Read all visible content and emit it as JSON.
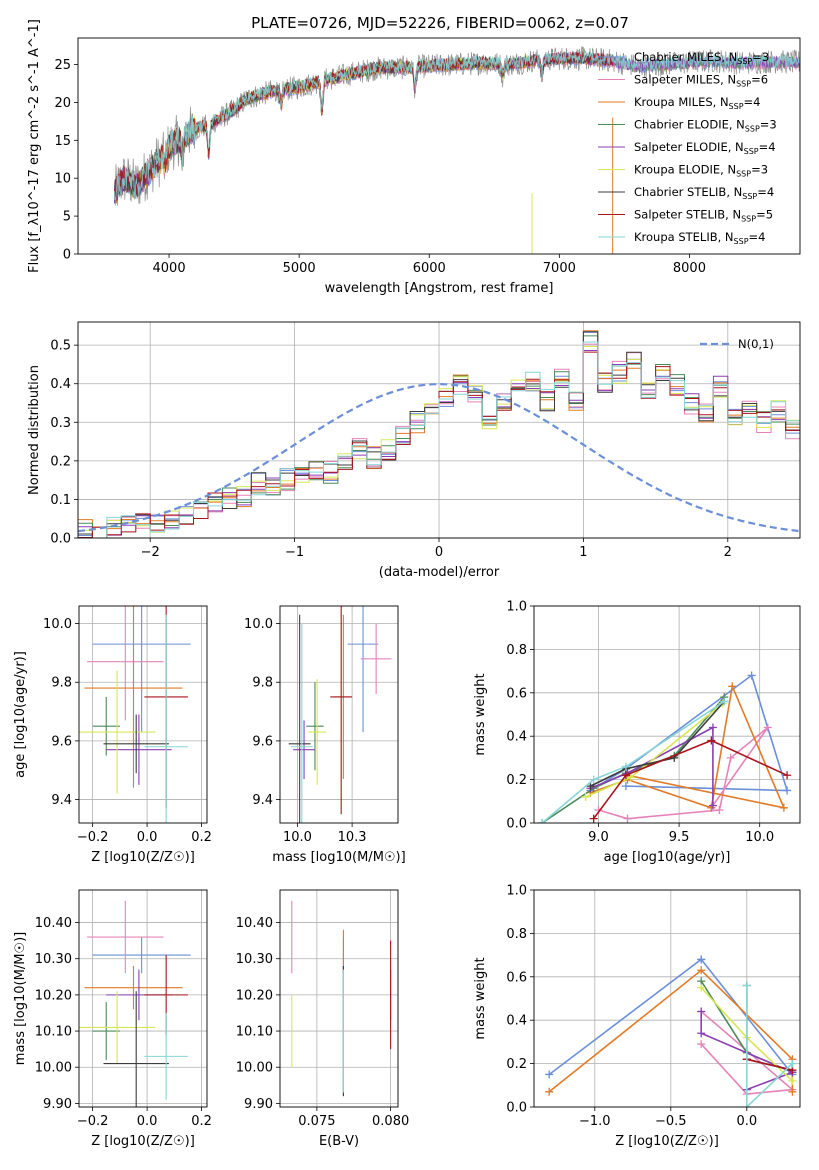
{
  "figure": {
    "title": "PLATE=0726, MJD=52226, FIBERID=0062, z=0.07"
  },
  "colors": {
    "Chabrier MILES": "#6b8fd9",
    "Salpeter MILES": "#e583b8",
    "Kroupa MILES": "#e07b28",
    "Chabrier ELODIE": "#4d8a5a",
    "Salpeter ELODIE": "#8a3fb5",
    "Kroupa ELODIE": "#d8e655",
    "Chabrier STELIB": "#3c3c3c",
    "Salpeter STELIB": "#a8151c",
    "Kroupa STELIB": "#86d6d6"
  },
  "chart_data": [
    {
      "id": "spectrum",
      "type": "line",
      "title": "PLATE=0726, MJD=52226, FIBERID=0062, z=0.07",
      "xlabel": "wavelength [Angstrom, rest frame]",
      "ylabel": "Flux [f_λ10^-17 erg cm^-2 s^-1 A^-1]",
      "xlim": [
        3300,
        8850
      ],
      "ylim": [
        0,
        28.5
      ],
      "xticks": [
        4000,
        5000,
        6000,
        7000,
        8000
      ],
      "yticks": [
        0,
        5,
        10,
        15,
        20,
        25
      ],
      "grid": false,
      "legend_position": "upper-right",
      "legend": [
        {
          "label": "Chabrier MILES, N",
          "sub": "SSP",
          "rest": "=3"
        },
        {
          "label": "Salpeter MILES, N",
          "sub": "SSP",
          "rest": "=6"
        },
        {
          "label": "Kroupa MILES, N",
          "sub": "SSP",
          "rest": "=4"
        },
        {
          "label": "Chabrier ELODIE, N",
          "sub": "SSP",
          "rest": "=3"
        },
        {
          "label": "Salpeter ELODIE, N",
          "sub": "SSP",
          "rest": "=4"
        },
        {
          "label": "Kroupa ELODIE, N",
          "sub": "SSP",
          "rest": "=3"
        },
        {
          "label": "Chabrier STELIB, N",
          "sub": "SSP",
          "rest": "=4"
        },
        {
          "label": "Salpeter STELIB, N",
          "sub": "SSP",
          "rest": "=5"
        },
        {
          "label": "Kroupa STELIB, N",
          "sub": "SSP",
          "rest": "=4"
        }
      ],
      "continuum": [
        [
          3580,
          8
        ],
        [
          3650,
          10
        ],
        [
          3750,
          9
        ],
        [
          3850,
          11
        ],
        [
          3950,
          13
        ],
        [
          4000,
          14
        ],
        [
          4100,
          15.5
        ],
        [
          4200,
          16.5
        ],
        [
          4300,
          17
        ],
        [
          4400,
          18
        ],
        [
          4500,
          19
        ],
        [
          4600,
          20.5
        ],
        [
          4800,
          21.5
        ],
        [
          5000,
          22
        ],
        [
          5200,
          23
        ],
        [
          5400,
          23.8
        ],
        [
          5600,
          24.5
        ],
        [
          5800,
          24.6
        ],
        [
          6000,
          24.8
        ],
        [
          6200,
          25
        ],
        [
          6400,
          25.2
        ],
        [
          6600,
          25
        ],
        [
          6800,
          25.5
        ],
        [
          7000,
          25.8
        ],
        [
          7200,
          25.8
        ],
        [
          7400,
          25.5
        ],
        [
          7600,
          24.8
        ],
        [
          7800,
          25
        ],
        [
          8000,
          25.3
        ],
        [
          8200,
          25.5
        ],
        [
          8400,
          25.2
        ],
        [
          8600,
          25.4
        ],
        [
          8800,
          25.3
        ]
      ],
      "absorption_features": [
        [
          3934,
          0.5
        ],
        [
          3969,
          1.5
        ],
        [
          4102,
          3
        ],
        [
          4305,
          4
        ],
        [
          4861,
          2
        ],
        [
          5175,
          4
        ],
        [
          5890,
          3
        ],
        [
          6563,
          1.5
        ],
        [
          6867,
          2
        ]
      ],
      "gaps": [
        [
          6790,
          8
        ],
        [
          7410,
          18
        ]
      ]
    },
    {
      "id": "residuals",
      "type": "histogram",
      "xlabel": "(data-model)/error",
      "ylabel": "Normed distribution",
      "xlim": [
        -2.5,
        2.5
      ],
      "ylim": [
        0,
        0.56
      ],
      "xticks": [
        -2,
        -1,
        0,
        1,
        2
      ],
      "yticks": [
        0.0,
        0.1,
        0.2,
        0.3,
        0.4,
        0.5
      ],
      "grid": true,
      "legend_position": "upper-right",
      "legend_label": "N(0,1)",
      "bin_width": 0.1,
      "bin_start": -2.5,
      "base_histogram": [
        0.02,
        0.02,
        0.03,
        0.035,
        0.05,
        0.04,
        0.045,
        0.06,
        0.07,
        0.09,
        0.1,
        0.11,
        0.14,
        0.13,
        0.15,
        0.17,
        0.18,
        0.17,
        0.2,
        0.23,
        0.21,
        0.23,
        0.26,
        0.3,
        0.32,
        0.37,
        0.4,
        0.38,
        0.3,
        0.36,
        0.39,
        0.4,
        0.36,
        0.41,
        0.36,
        0.51,
        0.4,
        0.43,
        0.46,
        0.38,
        0.42,
        0.4,
        0.35,
        0.33,
        0.39,
        0.32,
        0.33,
        0.3,
        0.33,
        0.28,
        0.25,
        0.26,
        0.2,
        0.22,
        0.16,
        0.18,
        0.15,
        0.14,
        0.14,
        0.12,
        0.13,
        0.1,
        0.09,
        0.08,
        0.07,
        0.07,
        0.06,
        0.05,
        0.05,
        0.045,
        0.04,
        0.035,
        0.03,
        0.02,
        0.02
      ]
    },
    {
      "id": "age-vs-Z",
      "type": "errorbar",
      "xlabel": "Z [log10(Z/Z☉)]",
      "ylabel": "age [log10(age/yr)]",
      "xlim": [
        -0.25,
        0.22
      ],
      "ylim": [
        9.32,
        10.06
      ],
      "xticks": [
        -0.2,
        0.0,
        0.2
      ],
      "yticks": [
        9.4,
        9.6,
        9.8,
        10.0
      ],
      "grid": true,
      "points": [
        {
          "series": "Chabrier MILES",
          "x": -0.02,
          "xerr": 0.18,
          "y": 9.93,
          "yerr": 0.3
        },
        {
          "series": "Salpeter MILES",
          "x": -0.08,
          "xerr": 0.14,
          "y": 9.87,
          "yerr": 0.2
        },
        {
          "series": "Kroupa MILES",
          "x": -0.05,
          "xerr": 0.18,
          "y": 9.78,
          "yerr": 0.34
        },
        {
          "series": "Chabrier ELODIE",
          "x": -0.15,
          "xerr": 0.05,
          "y": 9.65,
          "yerr": 0.1
        },
        {
          "series": "Salpeter ELODIE",
          "x": -0.03,
          "xerr": 0.12,
          "y": 9.57,
          "yerr": 0.12
        },
        {
          "series": "Kroupa ELODIE",
          "x": -0.11,
          "xerr": 0.14,
          "y": 9.63,
          "yerr": 0.21
        },
        {
          "series": "Chabrier STELIB",
          "x": -0.04,
          "xerr": 0.12,
          "y": 9.59,
          "yerr": 0.1
        },
        {
          "series": "Salpeter STELIB",
          "x": 0.07,
          "xerr": 0.08,
          "y": 9.75,
          "yerr": 0.38
        },
        {
          "series": "Kroupa STELIB",
          "x": 0.07,
          "xerr": 0.08,
          "y": 9.58,
          "yerr": 0.45
        }
      ]
    },
    {
      "id": "age-vs-mass",
      "type": "errorbar",
      "xlabel": "mass [log10(M/M☉)]",
      "ylabel": "",
      "xlim": [
        9.92,
        10.46
      ],
      "ylim": [
        9.32,
        10.06
      ],
      "xticks": [
        10.0,
        10.25
      ],
      "yticks": [
        9.4,
        9.6,
        9.8,
        10.0
      ],
      "grid": true,
      "points": [
        {
          "series": "Chabrier MILES",
          "x": 10.3,
          "xerr": 0.07,
          "y": 9.93,
          "yerr": 0.3
        },
        {
          "series": "Salpeter MILES",
          "x": 10.36,
          "xerr": 0.07,
          "y": 9.88,
          "yerr": 0.12
        },
        {
          "series": "Kroupa MILES",
          "x": 10.21,
          "xerr": 0.04,
          "y": 9.75,
          "yerr": 0.28
        },
        {
          "series": "Chabrier ELODIE",
          "x": 10.08,
          "xerr": 0.04,
          "y": 9.65,
          "yerr": 0.15
        },
        {
          "series": "Salpeter ELODIE",
          "x": 10.03,
          "xerr": 0.05,
          "y": 9.57,
          "yerr": 0.1
        },
        {
          "series": "Kroupa ELODIE",
          "x": 10.09,
          "xerr": 0.04,
          "y": 9.63,
          "yerr": 0.18
        },
        {
          "series": "Chabrier STELIB",
          "x": 10.01,
          "xerr": 0.05,
          "y": 9.59,
          "yerr": 0.44
        },
        {
          "series": "Salpeter STELIB",
          "x": 10.2,
          "xerr": 0.05,
          "y": 9.75,
          "yerr": 0.4
        },
        {
          "series": "Kroupa STELIB",
          "x": 10.02,
          "xerr": 0.05,
          "y": 9.58,
          "yerr": 0.42
        }
      ]
    },
    {
      "id": "mass-weight-vs-age",
      "type": "line",
      "xlabel": "age [log10(age/yr)]",
      "ylabel": "mass weight",
      "xlim": [
        8.6,
        10.25
      ],
      "ylim": [
        0,
        1
      ],
      "xticks": [
        9.0,
        9.5,
        10.0
      ],
      "yticks": [
        0.0,
        0.2,
        0.4,
        0.6,
        0.8,
        1.0
      ],
      "grid": true,
      "series": [
        {
          "name": "Chabrier MILES",
          "x": [
            8.95,
            9.17,
            9.95,
            10.17,
            9.17
          ],
          "y": [
            0.15,
            0.25,
            0.68,
            0.15,
            0.17
          ]
        },
        {
          "name": "Salpeter MILES",
          "x": [
            9.0,
            9.18,
            9.75,
            9.82,
            10.05,
            9.7
          ],
          "y": [
            0.06,
            0.02,
            0.06,
            0.3,
            0.44,
            0.07
          ]
        },
        {
          "name": "Kroupa MILES",
          "x": [
            8.95,
            9.18,
            9.7,
            9.83,
            10.15,
            9.18
          ],
          "y": [
            0.14,
            0.2,
            0.07,
            0.63,
            0.07,
            0.22
          ]
        },
        {
          "name": "Chabrier ELODIE",
          "x": [
            8.65,
            8.97,
            9.17,
            9.47,
            9.78
          ],
          "y": [
            0.0,
            0.16,
            0.23,
            0.31,
            0.58
          ]
        },
        {
          "name": "Salpeter ELODIE",
          "x": [
            8.95,
            9.18,
            9.71,
            9.71
          ],
          "y": [
            0.16,
            0.23,
            0.44,
            0.08
          ]
        },
        {
          "name": "Kroupa ELODIE",
          "x": [
            8.92,
            9.2,
            9.77
          ],
          "y": [
            0.12,
            0.21,
            0.55
          ]
        },
        {
          "name": "Chabrier STELIB",
          "x": [
            8.95,
            9.17,
            9.47,
            9.78
          ],
          "y": [
            0.17,
            0.25,
            0.3,
            0.56
          ]
        },
        {
          "name": "Salpeter STELIB",
          "x": [
            8.97,
            9.17,
            9.7,
            10.17
          ],
          "y": [
            0.02,
            0.22,
            0.38,
            0.22
          ]
        },
        {
          "name": "Kroupa STELIB",
          "x": [
            8.65,
            8.97,
            9.17,
            9.78
          ],
          "y": [
            0.0,
            0.2,
            0.26,
            0.56
          ]
        }
      ]
    },
    {
      "id": "mass-vs-Z",
      "type": "errorbar",
      "xlabel": "Z [log10(Z/Z☉)]",
      "ylabel": "mass [log10(M/M☉)]",
      "xlim": [
        -0.25,
        0.22
      ],
      "ylim": [
        9.89,
        10.49
      ],
      "xticks": [
        -0.2,
        0.0,
        0.2
      ],
      "yticks": [
        9.9,
        10.0,
        10.1,
        10.2,
        10.3,
        10.4
      ],
      "grid": true,
      "points": [
        {
          "series": "Chabrier MILES",
          "x": -0.02,
          "xerr": 0.18,
          "y": 10.31,
          "yerr": 0.05
        },
        {
          "series": "Salpeter MILES",
          "x": -0.08,
          "xerr": 0.14,
          "y": 10.36,
          "yerr": 0.1
        },
        {
          "series": "Kroupa MILES",
          "x": -0.05,
          "xerr": 0.18,
          "y": 10.22,
          "yerr": 0.06
        },
        {
          "series": "Chabrier ELODIE",
          "x": -0.15,
          "xerr": 0.05,
          "y": 10.1,
          "yerr": 0.08
        },
        {
          "series": "Salpeter ELODIE",
          "x": -0.03,
          "xerr": 0.12,
          "y": 10.2,
          "yerr": 0.07
        },
        {
          "series": "Kroupa ELODIE",
          "x": -0.11,
          "xerr": 0.14,
          "y": 10.11,
          "yerr": 0.1
        },
        {
          "series": "Chabrier STELIB",
          "x": -0.04,
          "xerr": 0.12,
          "y": 10.01,
          "yerr": 0.2
        },
        {
          "series": "Salpeter STELIB",
          "x": 0.07,
          "xerr": 0.08,
          "y": 10.2,
          "yerr": 0.11
        },
        {
          "series": "Kroupa STELIB",
          "x": 0.07,
          "xerr": 0.08,
          "y": 10.03,
          "yerr": 0.12
        }
      ]
    },
    {
      "id": "mass-vs-EBV",
      "type": "errorbar",
      "xlabel": "E(B-V)",
      "ylabel": "",
      "xlim": [
        0.0725,
        0.0805
      ],
      "ylim": [
        9.89,
        10.49
      ],
      "xticks": [
        0.075,
        0.08
      ],
      "yticks": [
        9.9,
        10.0,
        10.1,
        10.2,
        10.3,
        10.4
      ],
      "grid": true,
      "points": [
        {
          "series": "Chabrier MILES",
          "x": 0.0768,
          "xerr": 0,
          "y": 10.31,
          "yerr": 0.05
        },
        {
          "series": "Salpeter MILES",
          "x": 0.0733,
          "xerr": 0,
          "y": 10.36,
          "yerr": 0.1
        },
        {
          "series": "Kroupa MILES",
          "x": 0.0768,
          "xerr": 0,
          "y": 10.32,
          "yerr": 0.06
        },
        {
          "series": "Chabrier ELODIE",
          "x": 0.0768,
          "xerr": 0,
          "y": 10.1,
          "yerr": 0.18
        },
        {
          "series": "Salpeter ELODIE",
          "x": 0.08,
          "xerr": 0,
          "y": 10.2,
          "yerr": 0.07
        },
        {
          "series": "Kroupa ELODIE",
          "x": 0.0733,
          "xerr": 0,
          "y": 10.1,
          "yerr": 0.1
        },
        {
          "series": "Chabrier STELIB",
          "x": 0.0768,
          "xerr": 0,
          "y": 10.1,
          "yerr": 0.18
        },
        {
          "series": "Salpeter STELIB",
          "x": 0.08,
          "xerr": 0,
          "y": 10.2,
          "yerr": 0.15
        },
        {
          "series": "Kroupa STELIB",
          "x": 0.0768,
          "xerr": 0,
          "y": 10.1,
          "yerr": 0.17
        }
      ]
    },
    {
      "id": "mass-weight-vs-Z",
      "type": "line",
      "xlabel": "Z [log10(Z/Z☉)]",
      "ylabel": "mass weight",
      "xlim": [
        -1.4,
        0.35
      ],
      "ylim": [
        0,
        1
      ],
      "xticks": [
        -1.0,
        -0.5,
        0.0
      ],
      "yticks": [
        0.0,
        0.2,
        0.4,
        0.6,
        0.8,
        1.0
      ],
      "grid": true,
      "series": [
        {
          "name": "Chabrier MILES",
          "x": [
            -1.3,
            -0.3,
            0.3,
            -0.3
          ],
          "y": [
            0.15,
            0.68,
            0.15,
            0.68
          ]
        },
        {
          "name": "Salpeter MILES",
          "x": [
            -0.3,
            0.0,
            0.3,
            -0.3
          ],
          "y": [
            0.29,
            0.06,
            0.08,
            0.44
          ]
        },
        {
          "name": "Kroupa MILES",
          "x": [
            -1.3,
            -0.3,
            0.3,
            0.3
          ],
          "y": [
            0.07,
            0.63,
            0.22,
            0.07
          ]
        },
        {
          "name": "Chabrier ELODIE",
          "x": [
            -0.3,
            0.0,
            0.3
          ],
          "y": [
            0.58,
            0.25,
            0.16
          ]
        },
        {
          "name": "Salpeter ELODIE",
          "x": [
            -0.3,
            -0.3,
            0.3,
            0.0
          ],
          "y": [
            0.44,
            0.34,
            0.16,
            0.08
          ]
        },
        {
          "name": "Kroupa ELODIE",
          "x": [
            -0.3,
            0.0,
            0.3
          ],
          "y": [
            0.55,
            0.32,
            0.12
          ]
        },
        {
          "name": "Chabrier STELIB",
          "x": [
            0.0,
            0.0,
            0.3
          ],
          "y": [
            0.56,
            0.22,
            0.17
          ]
        },
        {
          "name": "Salpeter STELIB",
          "x": [
            0.0,
            0.3
          ],
          "y": [
            0.22,
            0.17
          ]
        },
        {
          "name": "Kroupa STELIB",
          "x": [
            0.0,
            0.0,
            0.3
          ],
          "y": [
            0.56,
            0.0,
            0.2
          ]
        }
      ]
    }
  ]
}
